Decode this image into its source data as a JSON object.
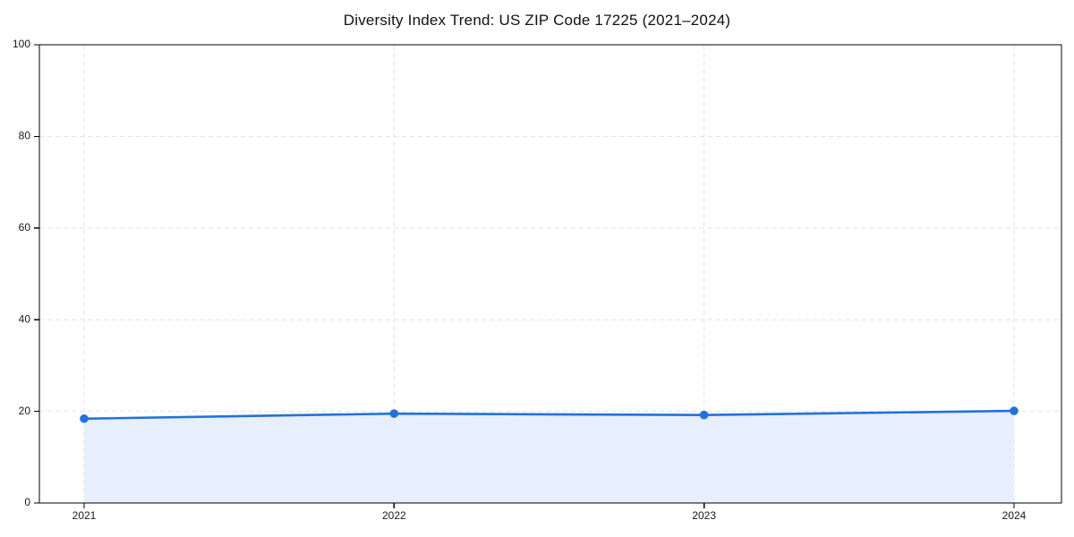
{
  "chart_data": {
    "type": "area",
    "title": "Diversity Index Trend: US ZIP Code 17225 (2021–2024)",
    "x": [
      "2021",
      "2022",
      "2023",
      "2024"
    ],
    "series": [
      {
        "name": "Diversity Index",
        "values": [
          18.4,
          19.5,
          19.2,
          20.1
        ]
      }
    ],
    "xlabel": "",
    "ylabel": "",
    "ylim": [
      0,
      100
    ],
    "yticks": [
      0,
      20,
      40,
      60,
      80,
      100
    ],
    "grid": "dashed-both-axes",
    "legend": "none",
    "markers": "circle",
    "colors": {
      "line": "#2171de",
      "marker": "#2171de",
      "fill": "#e7eefc",
      "gridline": "#e0e0e0",
      "spine": "#000000",
      "tick_label": "#1a1a1a",
      "title": "#111111",
      "background": "#ffffff"
    }
  }
}
